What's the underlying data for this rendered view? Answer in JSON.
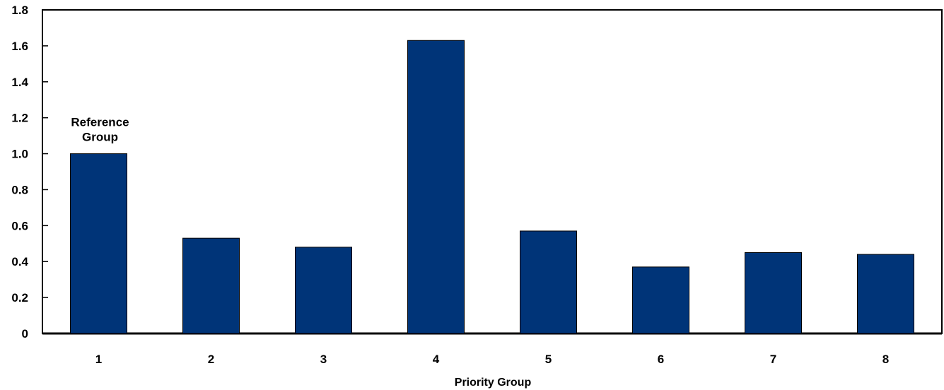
{
  "chart_data": {
    "type": "bar",
    "title": "",
    "xlabel": "Priority Group",
    "ylabel": "",
    "categories": [
      "1",
      "2",
      "3",
      "4",
      "5",
      "6",
      "7",
      "8"
    ],
    "values": [
      1.0,
      0.53,
      0.48,
      1.63,
      0.57,
      0.37,
      0.45,
      0.44
    ],
    "ylim": [
      0,
      1.8
    ],
    "yticks": [
      "0",
      "0.2",
      "0.4",
      "0.6",
      "0.8",
      "1.0",
      "1.2",
      "1.4",
      "1.6",
      "1.8"
    ],
    "annotation": {
      "category": "1",
      "lines": [
        "Reference",
        "Group"
      ]
    },
    "bar_color": "#003478",
    "grid": false,
    "legend": "none"
  }
}
